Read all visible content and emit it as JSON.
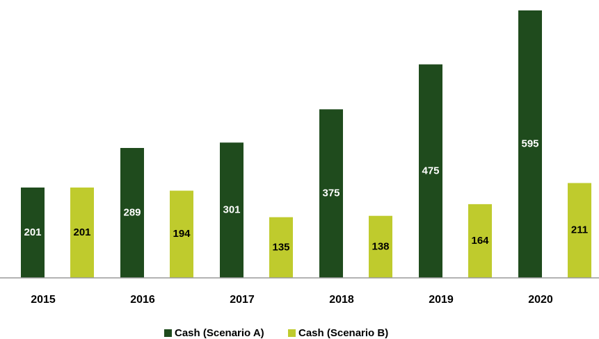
{
  "chart_data": {
    "type": "bar",
    "categories": [
      "2015",
      "2016",
      "2017",
      "2018",
      "2019",
      "2020"
    ],
    "series": [
      {
        "name": "Cash (Scenario A)",
        "color": "#1f4b1d",
        "values": [
          201,
          289,
          301,
          375,
          475,
          595
        ]
      },
      {
        "name": "Cash (Scenario B)",
        "color": "#bfcb2d",
        "values": [
          201,
          194,
          135,
          138,
          164,
          211
        ]
      }
    ]
  }
}
